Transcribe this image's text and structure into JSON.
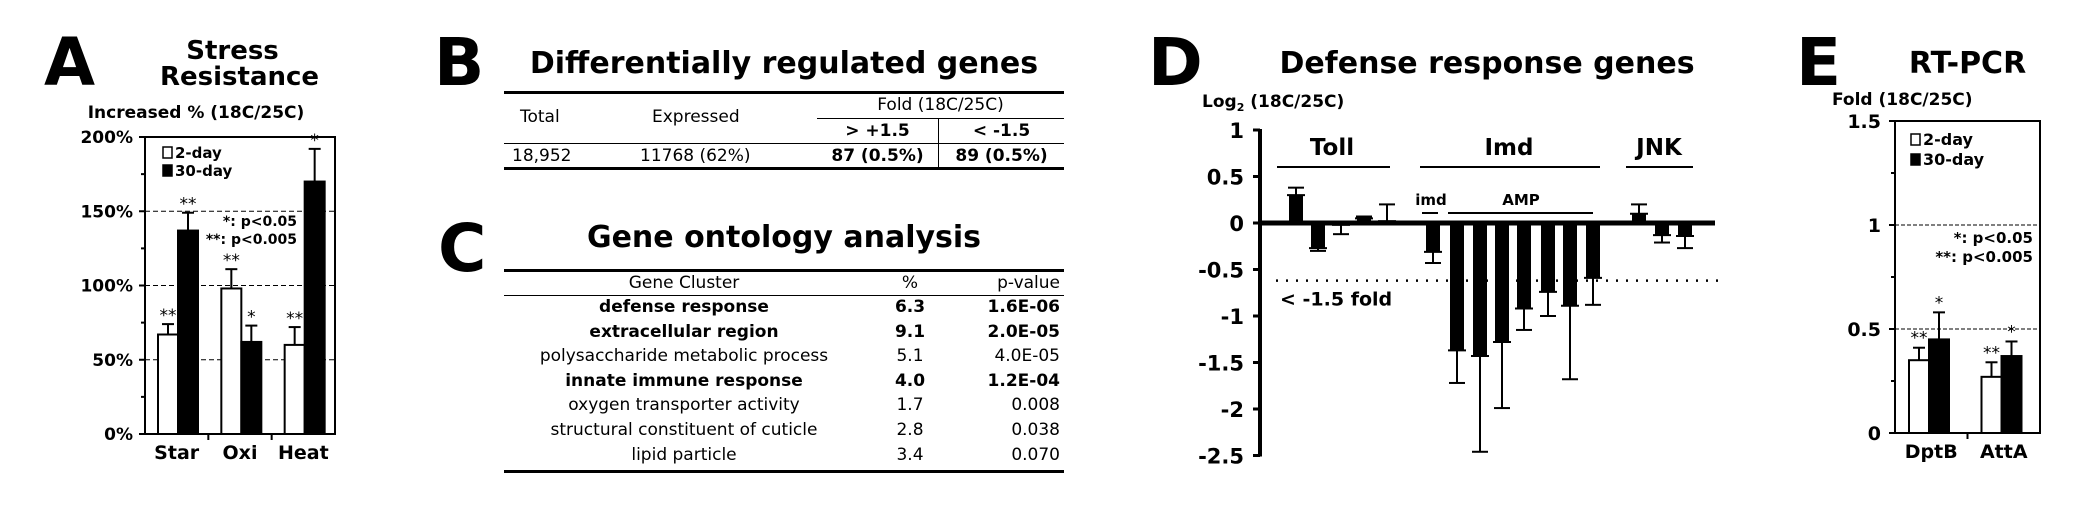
{
  "panels": {
    "A": {
      "letter": "A",
      "title_line1": "Stress",
      "title_line2": "Resistance"
    },
    "B": {
      "letter": "B",
      "title": "Differentially regulated genes"
    },
    "C": {
      "letter": "C",
      "title": "Gene ontology analysis"
    },
    "D": {
      "letter": "D",
      "title": "Defense response genes"
    },
    "E": {
      "letter": "E",
      "title": "RT-PCR"
    }
  },
  "table_b": {
    "headers": {
      "total": "Total",
      "expressed": "Expressed",
      "fold": "Fold (18C/25C)",
      "up": "> +1.5",
      "down": "< -1.5"
    },
    "row": {
      "total": "18,952",
      "expressed": "11768 (62%)",
      "up": "87 (0.5%)",
      "down": "89 (0.5%)"
    }
  },
  "table_c": {
    "headers": {
      "cluster": "Gene Cluster",
      "percent": "%",
      "pvalue": "p-value"
    },
    "rows": [
      {
        "cluster": "defense response",
        "percent": "6.3",
        "pvalue": "1.6E-06",
        "bold": true
      },
      {
        "cluster": "extracellular region",
        "percent": "9.1",
        "pvalue": "2.0E-05",
        "bold": true
      },
      {
        "cluster": "polysaccharide metabolic process",
        "percent": "5.1",
        "pvalue": "4.0E-05",
        "bold": false
      },
      {
        "cluster": "innate immune response",
        "percent": "4.0",
        "pvalue": "1.2E-04",
        "bold": true
      },
      {
        "cluster": "oxygen transporter activity",
        "percent": "1.7",
        "pvalue": "0.008",
        "bold": false
      },
      {
        "cluster": "structural constituent of cuticle",
        "percent": "2.8",
        "pvalue": "0.038",
        "bold": false
      },
      {
        "cluster": "lipid particle",
        "percent": "3.4",
        "pvalue": "0.070",
        "bold": false
      }
    ]
  },
  "chart_data": [
    {
      "id": "A",
      "type": "bar",
      "title": "Stress Resistance",
      "ylabel": "Increased % (18C/25C)",
      "xlabel": "",
      "categories": [
        "Star",
        "Oxi",
        "Heat"
      ],
      "ylim": [
        0,
        200
      ],
      "yticks": [
        0,
        50,
        100,
        150,
        200
      ],
      "ytick_labels": [
        "0%",
        "50%",
        "100%",
        "150%",
        "200%"
      ],
      "grid": "dashed at 50, 100, 150",
      "series": [
        {
          "name": "2-day",
          "fill": "#ffffff",
          "values": [
            67,
            98,
            60
          ],
          "errors": [
            7,
            13,
            12
          ],
          "significance": [
            "**",
            "**",
            "**"
          ]
        },
        {
          "name": "30-day",
          "fill": "#000000",
          "values": [
            137,
            62,
            170
          ],
          "errors": [
            12,
            11,
            22
          ],
          "significance": [
            "**",
            "*",
            "*"
          ]
        }
      ],
      "legend": {
        "position": "top-left",
        "entries": [
          "2-day",
          "30-day"
        ]
      },
      "annotations": [
        "*: p<0.05",
        "**: p<0.005"
      ]
    },
    {
      "id": "D",
      "type": "bar",
      "title": "Defense response genes",
      "ylabel": "Log2 (18C/25C)",
      "ylabel_base": "Log",
      "ylabel_sub": "2",
      "ylabel_rest": " (18C/25C)",
      "ylim": [
        -2.5,
        1
      ],
      "yticks": [
        1,
        0.5,
        0,
        -0.5,
        -1,
        -1.5,
        -2,
        -2.5
      ],
      "ytick_labels": [
        "1",
        "0.5",
        "0",
        "-0.5",
        "-1",
        "-1.5",
        "-2",
        "-2.5"
      ],
      "threshold": {
        "value": -0.62,
        "label": "< -1.5 fold",
        "style": "dotted"
      },
      "groups": [
        {
          "label": "Toll",
          "bars": [
            0,
            1,
            2,
            3,
            4
          ]
        },
        {
          "label": "Imd",
          "bars": [
            5,
            6,
            7,
            8,
            9,
            10,
            11,
            12
          ],
          "subgroups": [
            {
              "label": "imd",
              "bars": [
                5
              ]
            },
            {
              "label": "AMP",
              "bars": [
                6,
                7,
                8,
                9,
                10,
                11,
                12
              ]
            }
          ]
        },
        {
          "label": "JNK",
          "bars": [
            13,
            14,
            15
          ]
        }
      ],
      "values": [
        0.3,
        -0.27,
        -0.02,
        0.05,
        0.02,
        -0.31,
        -1.37,
        -1.43,
        -1.28,
        -0.92,
        -0.74,
        -0.89,
        -0.59,
        0.1,
        -0.13,
        -0.14
      ],
      "errors": [
        0.08,
        0.03,
        0.1,
        0.02,
        0.18,
        0.12,
        0.35,
        1.03,
        0.71,
        0.23,
        0.26,
        0.79,
        0.29,
        0.1,
        0.08,
        0.13
      ]
    },
    {
      "id": "E",
      "type": "bar",
      "title": "RT-PCR",
      "ylabel": "Fold (18C/25C)",
      "categories": [
        "DptB",
        "AttA"
      ],
      "ylim": [
        0,
        1.5
      ],
      "yticks": [
        0,
        0.5,
        1,
        1.5
      ],
      "ytick_labels": [
        "0",
        "0.5",
        "1",
        "1.5"
      ],
      "grid": "dashed at 0.5, 1",
      "series": [
        {
          "name": "2-day",
          "fill": "#ffffff",
          "values": [
            0.35,
            0.27
          ],
          "errors": [
            0.06,
            0.07
          ],
          "significance": [
            "**",
            "**"
          ]
        },
        {
          "name": "30-day",
          "fill": "#000000",
          "values": [
            0.45,
            0.37
          ],
          "errors": [
            0.13,
            0.07
          ],
          "significance": [
            "*",
            "*"
          ]
        }
      ],
      "legend": {
        "position": "top-left",
        "entries": [
          "2-day",
          "30-day"
        ]
      },
      "annotations": [
        "*: p<0.05",
        "**: p<0.005"
      ]
    }
  ]
}
